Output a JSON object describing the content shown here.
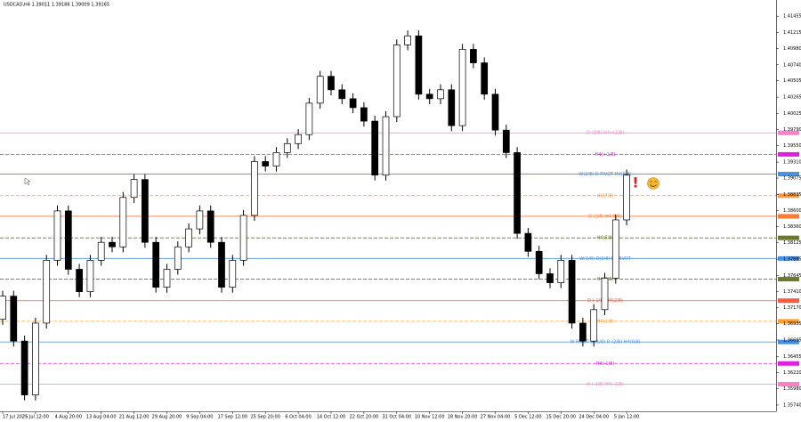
{
  "chart_data": {
    "type": "candlestick",
    "title": "USDCAD,H4  1.39011 1.39186 1.39009 1.39165",
    "categories": [
      "17 Jul 2025",
      null,
      null,
      "25 Jul 12:00",
      null,
      null,
      "4 Aug 20:00",
      null,
      null,
      "13 Aug 04:00",
      null,
      null,
      "21 Aug 12:00",
      null,
      null,
      "29 Aug 20:00",
      null,
      null,
      "9 Sep 04:00",
      null,
      null,
      "17 Sep 12:00",
      null,
      null,
      "25 Sep 20:00",
      null,
      null,
      "6 Oct 04:00",
      null,
      null,
      "14 Oct 12:00",
      null,
      null,
      "22 Oct 20:00",
      null,
      null,
      "31 Oct 04:00",
      null,
      null,
      "10 Nov 12:00",
      null,
      null,
      "18 Nov 20:00",
      null,
      null,
      "27 Nov 04:00",
      null,
      null,
      "5 Dec 12:00",
      null,
      null,
      "15 Dec 20:00",
      null,
      null,
      "24 Dec 04:00",
      null,
      null,
      "5 Jan 12:00"
    ],
    "open": [
      1.37,
      1.3734,
      1.3668,
      1.35889,
      1.36944,
      1.37867,
      1.38593,
      1.37735,
      1.37406,
      1.37867,
      1.38131,
      1.38065,
      1.38791,
      1.39054,
      1.38131,
      1.37472,
      1.37735,
      1.38065,
      1.38329,
      1.38593,
      1.38131,
      1.37472,
      1.37867,
      1.38527,
      1.39318,
      1.39252,
      1.3945,
      1.39582,
      1.39714,
      1.40176,
      1.40571,
      1.40373,
      1.40242,
      1.4011,
      1.39912,
      1.3912,
      1.39978,
      1.41033,
      1.41165,
      1.40308,
      1.40242,
      1.40373,
      1.39846,
      1.40967,
      1.40769,
      1.40308,
      1.3978,
      1.3945,
      1.38263,
      1.37999,
      1.3767,
      1.37538,
      1.37867,
      1.36944,
      1.3668,
      1.37142,
      1.37604,
      1.38461
    ],
    "high": [
      1.3742,
      1.3742,
      1.3676,
      1.37024,
      1.37947,
      1.38673,
      1.38673,
      1.37815,
      1.37947,
      1.38211,
      1.38211,
      1.38871,
      1.39134,
      1.39134,
      1.38211,
      1.37815,
      1.38145,
      1.38409,
      1.38673,
      1.38673,
      1.38211,
      1.37947,
      1.38607,
      1.39398,
      1.39398,
      1.3953,
      1.39662,
      1.39794,
      1.40256,
      1.40651,
      1.40651,
      1.40453,
      1.40322,
      1.4019,
      1.39992,
      1.40058,
      1.41113,
      1.41245,
      1.41245,
      1.40388,
      1.40453,
      1.40453,
      1.41047,
      1.41047,
      1.40849,
      1.40388,
      1.3986,
      1.3953,
      1.38343,
      1.38079,
      1.3775,
      1.37947,
      1.37947,
      1.37024,
      1.37222,
      1.37684,
      1.38541,
      1.392
    ],
    "low": [
      1.3692,
      1.366,
      1.35809,
      1.35809,
      1.36864,
      1.37787,
      1.37655,
      1.37326,
      1.37326,
      1.37787,
      1.37985,
      1.37985,
      1.38711,
      1.38051,
      1.37392,
      1.37392,
      1.37655,
      1.37985,
      1.38249,
      1.38051,
      1.37392,
      1.37392,
      1.37787,
      1.38447,
      1.39172,
      1.39172,
      1.3937,
      1.39502,
      1.39634,
      1.40096,
      1.40293,
      1.40162,
      1.4003,
      1.39832,
      1.3904,
      1.3904,
      1.39898,
      1.40953,
      1.40228,
      1.40162,
      1.40162,
      1.39766,
      1.39766,
      1.40689,
      1.40228,
      1.397,
      1.3937,
      1.38183,
      1.37919,
      1.3759,
      1.37458,
      1.37458,
      1.36864,
      1.366,
      1.366,
      1.37062,
      1.37524,
      1.38381
    ],
    "close": [
      1.3734,
      1.3668,
      1.35889,
      1.36944,
      1.37867,
      1.38593,
      1.37735,
      1.37406,
      1.37867,
      1.38131,
      1.38065,
      1.38791,
      1.39054,
      1.38131,
      1.37472,
      1.37735,
      1.38065,
      1.38329,
      1.38593,
      1.38131,
      1.37472,
      1.37867,
      1.38527,
      1.39318,
      1.39252,
      1.3945,
      1.39582,
      1.39714,
      1.40176,
      1.40571,
      1.40373,
      1.40242,
      1.4011,
      1.39912,
      1.3912,
      1.39978,
      1.41033,
      1.41165,
      1.40308,
      1.40242,
      1.40373,
      1.39846,
      1.40967,
      1.40769,
      1.40308,
      1.3978,
      1.3945,
      1.38263,
      1.37999,
      1.3767,
      1.37538,
      1.37867,
      1.36944,
      1.3668,
      1.37142,
      1.37604,
      1.38461,
      1.3912
    ],
    "ylim": [
      1.35648,
      1.41653
    ],
    "yticks": [
      1.41455,
      1.41215,
      {
        "value": 1.4098,
        "label": "1.40980"
      },
      {
        "value": 1.4074,
        "label": "1.40740"
      },
      1.40505,
      1.40265,
      1.40025,
      {
        "value": 1.3979,
        "label": "1.39790"
      },
      {
        "value": 1.3955,
        "label": "1.39550"
      },
      {
        "value": 1.3931,
        "label": "1.39310"
      },
      1.39075,
      1.38835,
      {
        "value": 1.386,
        "label": "1.38600"
      },
      {
        "value": 1.3836,
        "label": "1.38360"
      },
      1.38125,
      1.37885,
      1.37645,
      {
        "value": 1.3741,
        "label": "1.37410"
      },
      {
        "value": 1.3717,
        "label": "1.37170"
      },
      1.36935,
      1.36695,
      1.36455,
      {
        "value": 1.3622,
        "label": "1.36220"
      },
      {
        "value": 1.3598,
        "label": "1.35980"
      },
      {
        "value": 1.3574,
        "label": "1.35740"
      }
    ],
    "levels": [
      {
        "value": 1.3974,
        "label": "D (3/8) H4(+2/8)",
        "color": "#ff80c8",
        "dashed": false
      },
      {
        "value": 1.39424,
        "label": "H4(+1/8)",
        "color": "#e020e0",
        "dashed": true
      },
      {
        "value": 1.39134,
        "label": "W(2/8) D PIVOT H4(8/8)",
        "color": "#4a90e2",
        "dashed": false
      },
      {
        "value": 1.38817,
        "label": "H4(7/8)",
        "color": "#ff9a3c",
        "dashed": true
      },
      {
        "value": 1.38514,
        "label": "D (1/8) H4(6/8)",
        "color": "#ff7a30",
        "dashed": false
      },
      {
        "value": 1.38197,
        "label": "H4(5/8)",
        "color": "#6b7a2a",
        "dashed": true
      },
      {
        "value": 1.37894,
        "label": "W(1/8) D(0/8) H4PIVOT",
        "color": "#4a90e2",
        "dashed": false
      },
      {
        "value": 1.3759,
        "label": "H4(3/8)",
        "color": "#6b7a2a",
        "dashed": true
      },
      {
        "value": 1.37274,
        "label": "D (-1/8) H4(2/8)",
        "color": "#ff5a3c",
        "dashed": false
      },
      {
        "value": 1.36971,
        "label": "H4(1/8)",
        "color": "#ffa030",
        "dashed": true
      },
      {
        "value": 1.36667,
        "label": "W PIVOT W(1/8) D (2/8) H4(0/8)",
        "color": "#4a90e2",
        "dashed": false
      },
      {
        "value": 1.36351,
        "label": "H4(-1/8)",
        "color": "#e020e0",
        "dashed": true
      },
      {
        "value": 1.36047,
        "label": "D (-1/8) H4(-2/8)",
        "color": "#ff80c8",
        "dashed": false
      }
    ],
    "alert_mark": "!",
    "up_color": "#ffffff",
    "down_color": "#000000",
    "grid": false
  }
}
